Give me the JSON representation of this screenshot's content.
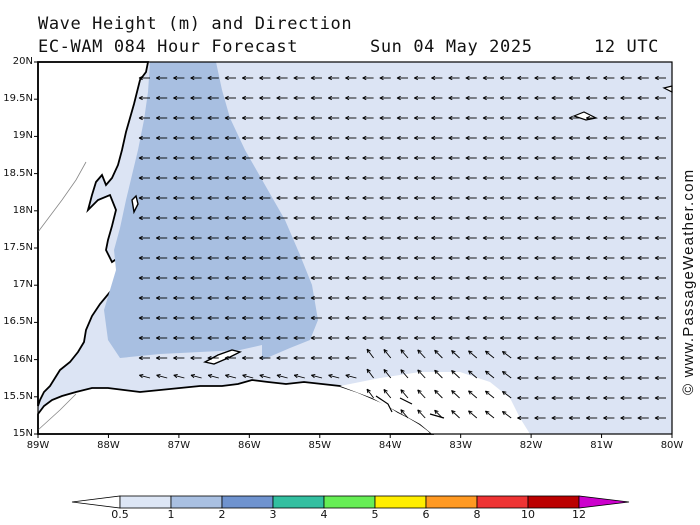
{
  "header": {
    "title": "Wave Height (m) and Direction",
    "model": "EC-WAM 084 Hour Forecast",
    "date": "Sun 04 May 2025",
    "time": "12 UTC"
  },
  "credit": "© www.PassageWeather.com",
  "axes": {
    "lat_labels": [
      "20N",
      "19.5N",
      "19N",
      "18.5N",
      "18N",
      "17.5N",
      "17N",
      "16.5N",
      "16N",
      "15.5N",
      "15N"
    ],
    "lon_labels": [
      "89W",
      "88W",
      "87W",
      "86W",
      "85W",
      "84W",
      "83W",
      "82W",
      "81W",
      "80W"
    ]
  },
  "colorbar": {
    "labels": [
      "0.5",
      "1",
      "2",
      "3",
      "4",
      "5",
      "6",
      "8",
      "10",
      "12"
    ],
    "colors": [
      "#dde6f5",
      "#a9c0e2",
      "#6f93cf",
      "#33bfa0",
      "#66ee55",
      "#ffee00",
      "#ff9922",
      "#ee3333",
      "#bb0000",
      "#cc00cc"
    ]
  },
  "map_colors": {
    "calm": "#ffffff",
    "band1": "#dce4f4",
    "band2": "#a8bfe1"
  }
}
